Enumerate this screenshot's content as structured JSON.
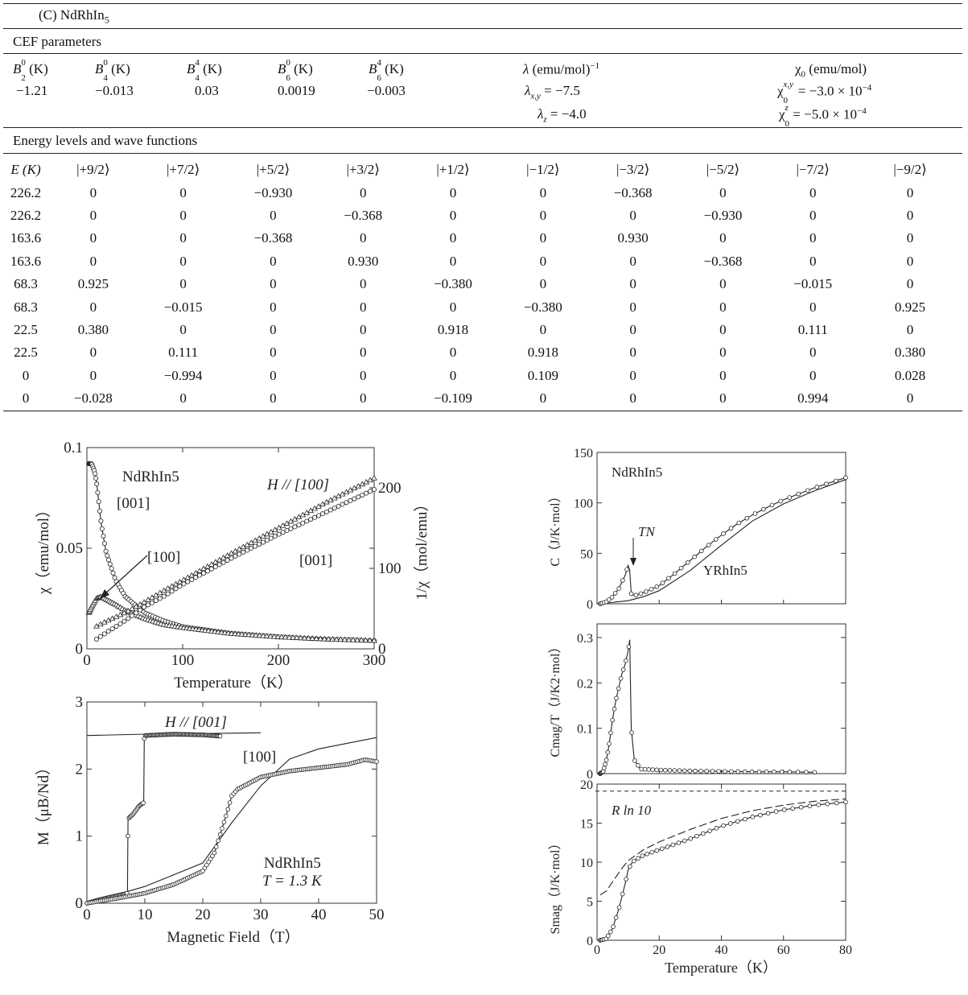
{
  "table": {
    "caption": "(C) NdRhIn5",
    "cef_heading": "CEF parameters",
    "cef_headers": [
      "B20 (K)",
      "B40 (K)",
      "B44 (K)",
      "B60 (K)",
      "B64 (K)"
    ],
    "cef_values": [
      "−1.21",
      "−0.013",
      "0.03",
      "0.0019",
      "−0.003"
    ],
    "lambda_header": "λ (emu/mol)−1",
    "lambda_xy": "λx,y = −7.5",
    "lambda_z": "λz = −4.0",
    "chi_header": "χ0 (emu/mol)",
    "chi_xy": "χ0x,y = −3.0 × 10−4",
    "chi_z": "χ0z = −5.0 × 10−4",
    "energy_heading": "Energy levels and wave functions",
    "energy_headers": [
      "E (K)",
      "|+9/2⟩",
      "|+7/2⟩",
      "|+5/2⟩",
      "|+3/2⟩",
      "|+1/2⟩",
      "|−1/2⟩",
      "|−3/2⟩",
      "|−5/2⟩",
      "|−7/2⟩",
      "|−9/2⟩"
    ],
    "energy_rows": [
      [
        "226.2",
        "0",
        "0",
        "−0.930",
        "0",
        "0",
        "0",
        "−0.368",
        "0",
        "0",
        "0"
      ],
      [
        "226.2",
        "0",
        "0",
        "0",
        "−0.368",
        "0",
        "0",
        "0",
        "−0.930",
        "0",
        "0"
      ],
      [
        "163.6",
        "0",
        "0",
        "−0.368",
        "0",
        "0",
        "0",
        "0.930",
        "0",
        "0",
        "0"
      ],
      [
        "163.6",
        "0",
        "0",
        "0",
        "0.930",
        "0",
        "0",
        "0",
        "−0.368",
        "0",
        "0"
      ],
      [
        "68.3",
        "0.925",
        "0",
        "0",
        "0",
        "−0.380",
        "0",
        "0",
        "0",
        "−0.015",
        "0"
      ],
      [
        "68.3",
        "0",
        "−0.015",
        "0",
        "0",
        "0",
        "−0.380",
        "0",
        "0",
        "0",
        "0.925"
      ],
      [
        "22.5",
        "0.380",
        "0",
        "0",
        "0",
        "0.918",
        "0",
        "0",
        "0",
        "0.111",
        "0"
      ],
      [
        "22.5",
        "0",
        "0.111",
        "0",
        "0",
        "0",
        "0.918",
        "0",
        "0",
        "0",
        "0.380"
      ],
      [
        "0",
        "0",
        "−0.994",
        "0",
        "0",
        "0",
        "0.109",
        "0",
        "0",
        "0",
        "0.028"
      ],
      [
        "0",
        "−0.028",
        "0",
        "0",
        "0",
        "−0.109",
        "0",
        "0",
        "0",
        "0.994",
        "0"
      ]
    ]
  },
  "chart_data": [
    {
      "type": "line",
      "xlabel": "Temperature（K）",
      "ylabel": "χ（emu/mol）",
      "y2label": "1/χ（mol/emu）",
      "xlim": [
        0,
        300
      ],
      "ylim": [
        0,
        0.1
      ],
      "y2lim": [
        0,
        250
      ],
      "xticks": [
        "0",
        "100",
        "200",
        "300"
      ],
      "yticks": [
        "0",
        "0.05",
        "0.1"
      ],
      "y2ticks": [
        "0",
        "100",
        "200"
      ],
      "annotations": {
        "compound": "NdRhIn5",
        "c001_chi": "[001]",
        "c100_chi": "[100]",
        "h100": "H // [100]",
        "c001_inv": "[001]"
      },
      "series": [
        {
          "name": "[001]",
          "x": [
            2,
            5,
            8,
            10,
            15,
            20,
            30,
            40,
            60,
            80,
            100,
            150,
            200,
            250,
            300
          ],
          "values": [
            0.092,
            0.092,
            0.088,
            0.083,
            0.062,
            0.048,
            0.034,
            0.026,
            0.018,
            0.014,
            0.011,
            0.0077,
            0.0059,
            0.0048,
            0.0041
          ]
        },
        {
          "name": "[100]",
          "x": [
            2,
            5,
            10,
            15,
            20,
            30,
            40,
            60,
            80,
            100,
            150,
            200,
            250,
            300
          ],
          "values": [
            0.018,
            0.021,
            0.025,
            0.026,
            0.0245,
            0.022,
            0.019,
            0.015,
            0.012,
            0.0105,
            0.0076,
            0.0059,
            0.0048,
            0.0041
          ]
        },
        {
          "name": "1/χ H // [100]",
          "x": [
            10,
            20,
            40,
            60,
            80,
            100,
            150,
            200,
            250,
            300
          ],
          "values": [
            28,
            34,
            45,
            58,
            72,
            85,
            118,
            150,
            182,
            212
          ]
        },
        {
          "name": "1/χ [001]",
          "x": [
            10,
            20,
            40,
            60,
            80,
            100,
            150,
            200,
            250,
            300
          ],
          "values": [
            12,
            20,
            35,
            52,
            65,
            80,
            112,
            142,
            170,
            198
          ]
        }
      ]
    },
    {
      "type": "line",
      "xlabel": "Magnetic Field（T）",
      "ylabel": "M（μB/Nd）",
      "xlim": [
        0,
        50
      ],
      "ylim": [
        0,
        3
      ],
      "xticks": [
        "0",
        "10",
        "20",
        "30",
        "40",
        "50"
      ],
      "yticks": [
        "0",
        "1",
        "2",
        "3"
      ],
      "annotations": {
        "h001": "H // [001]",
        "c100": "[100]",
        "compound": "NdRhIn5",
        "temp": "T = 1.3 K"
      },
      "series": [
        {
          "name": "H // [001]",
          "x": [
            0,
            2,
            4,
            6,
            7,
            7.1,
            8,
            9,
            9.8,
            9.9,
            10,
            15,
            20,
            23
          ],
          "values": [
            0,
            0.05,
            0.09,
            0.13,
            0.15,
            1.26,
            1.33,
            1.45,
            1.5,
            2.45,
            2.5,
            2.52,
            2.51,
            2.49
          ]
        },
        {
          "name": "[100]",
          "x": [
            0,
            5,
            10,
            15,
            20,
            22,
            24,
            25,
            26,
            30,
            35,
            40,
            45,
            48,
            50
          ],
          "values": [
            0,
            0.07,
            0.15,
            0.28,
            0.48,
            0.75,
            1.3,
            1.6,
            1.7,
            1.88,
            1.97,
            2.02,
            2.07,
            2.14,
            2.11
          ]
        },
        {
          "name": "calc [001]",
          "x": [
            0,
            10,
            20,
            30
          ],
          "values": [
            2.5,
            2.52,
            2.53,
            2.54
          ]
        },
        {
          "name": "calc [100]",
          "x": [
            0,
            10,
            20,
            25,
            30,
            35,
            40,
            50
          ],
          "values": [
            0,
            0.25,
            0.6,
            1.2,
            1.75,
            2.15,
            2.3,
            2.47
          ]
        }
      ]
    },
    {
      "type": "line",
      "ylabel": "C（J/K·mol）",
      "xlim": [
        0,
        80
      ],
      "ylim": [
        0,
        150
      ],
      "yticks": [
        "0",
        "50",
        "100",
        "150"
      ],
      "annotations": {
        "compound": "NdRhIn5",
        "tn": "TN",
        "yrh": "YRhIn5"
      },
      "series": [
        {
          "name": "NdRhIn5",
          "x": [
            1,
            3,
            5,
            7,
            9,
            10,
            10.5,
            11,
            12,
            15,
            20,
            25,
            30,
            35,
            40,
            45,
            50,
            55,
            60,
            70,
            80
          ],
          "values": [
            0,
            2,
            7,
            15,
            28,
            38,
            33,
            10,
            8,
            11,
            18,
            30,
            43,
            56,
            68,
            79,
            88,
            96,
            103,
            115,
            125
          ]
        },
        {
          "name": "YRhIn5",
          "x": [
            1,
            10,
            15,
            20,
            30,
            40,
            50,
            60,
            70,
            80
          ],
          "values": [
            0,
            3,
            7,
            13,
            33,
            58,
            82,
            99,
            112,
            123
          ]
        }
      ]
    },
    {
      "type": "line",
      "ylabel": "Cmag/T（J/K2·mol）",
      "xlim": [
        0,
        80
      ],
      "ylim": [
        0,
        0.33
      ],
      "yticks": [
        "0",
        "0.1",
        "0.2",
        "0.3"
      ],
      "series": [
        {
          "name": "Cmag/T",
          "x": [
            1,
            2,
            3,
            4,
            5,
            6,
            7,
            8,
            9,
            10,
            10.5,
            11,
            12,
            14,
            20,
            30,
            40,
            50,
            60,
            70
          ],
          "values": [
            0,
            0.005,
            0.03,
            0.07,
            0.12,
            0.16,
            0.19,
            0.22,
            0.24,
            0.27,
            0.295,
            0.1,
            0.03,
            0.01,
            0.008,
            0.006,
            0.005,
            0.004,
            0.004,
            0.003
          ]
        }
      ]
    },
    {
      "type": "line",
      "xlabel": "Temperature（K）",
      "ylabel": "Smag（J/K·mol）",
      "xlim": [
        0,
        80
      ],
      "ylim": [
        0,
        20
      ],
      "xticks": [
        "0",
        "20",
        "40",
        "60",
        "80"
      ],
      "yticks": [
        "0",
        "5",
        "10",
        "15",
        "20"
      ],
      "annotations": {
        "rln": "R ln 10"
      },
      "reference": 19.1,
      "series": [
        {
          "name": "Smag",
          "x": [
            1,
            3,
            5,
            7,
            9,
            10,
            11,
            12,
            15,
            20,
            25,
            30,
            40,
            50,
            60,
            70,
            80
          ],
          "values": [
            0,
            0.2,
            1.5,
            4,
            7.2,
            9,
            9.8,
            10.2,
            10.9,
            11.6,
            12.3,
            13,
            14.6,
            15.8,
            16.7,
            17.3,
            17.7
          ]
        },
        {
          "name": "calc",
          "x": [
            1,
            3,
            5,
            8,
            10,
            15,
            20,
            30,
            40,
            50,
            60,
            70,
            80
          ],
          "values": [
            5.8,
            6.3,
            7.5,
            9.2,
            10.2,
            11.6,
            12.6,
            14.2,
            15.6,
            16.6,
            17.3,
            17.8,
            18.1
          ]
        }
      ]
    }
  ]
}
